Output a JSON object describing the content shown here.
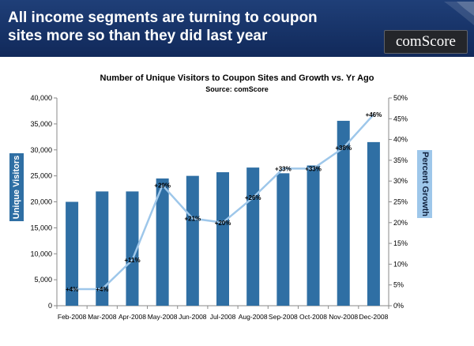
{
  "banner": {
    "headline": "All income segments are turning to coupon sites more so than they did last year",
    "logo_text": "comScore"
  },
  "chart_data": {
    "type": "bar",
    "title": "Number of Unique Visitors to Coupon Sites  and Growth vs. Yr Ago",
    "subtitle": "Source: comScore",
    "categories": [
      "Feb-2008",
      "Mar-2008",
      "Apr-2008",
      "May-2008",
      "Jun-2008",
      "Jul-2008",
      "Aug-2008",
      "Sep-2008",
      "Oct-2008",
      "Nov-2008",
      "Dec-2008"
    ],
    "series": [
      {
        "type": "bar",
        "axis": "left",
        "values": [
          20000,
          22000,
          22000,
          24500,
          25000,
          25700,
          26600,
          25500,
          27000,
          35600,
          31500
        ]
      },
      {
        "type": "line",
        "axis": "right",
        "values": [
          4,
          4,
          11,
          29,
          21,
          20,
          26,
          33,
          33,
          38,
          46
        ],
        "labels": [
          "+4%",
          "+4%",
          "+11%",
          "+29%",
          "+21%",
          "+20%",
          "+26%",
          "+33%",
          "+33%",
          "+38%",
          "+46%"
        ]
      }
    ],
    "ylabel": "Unique Visitors",
    "ylabel_right": "Percent Growth",
    "ylim": [
      0,
      40000
    ],
    "ylim_right": [
      0,
      50
    ],
    "yticks": [
      "0",
      "5,000",
      "10,000",
      "15,000",
      "20,000",
      "25,000",
      "30,000",
      "35,000",
      "40,000"
    ],
    "yticks_right": [
      "0%",
      "5%",
      "10%",
      "15%",
      "20%",
      "25%",
      "30%",
      "35%",
      "40%",
      "45%",
      "50%"
    ],
    "grid": false,
    "legend": "none",
    "colors": {
      "bar": "#2f6fa4",
      "line": "#9ec7ea",
      "banner": "#1a3468"
    }
  }
}
